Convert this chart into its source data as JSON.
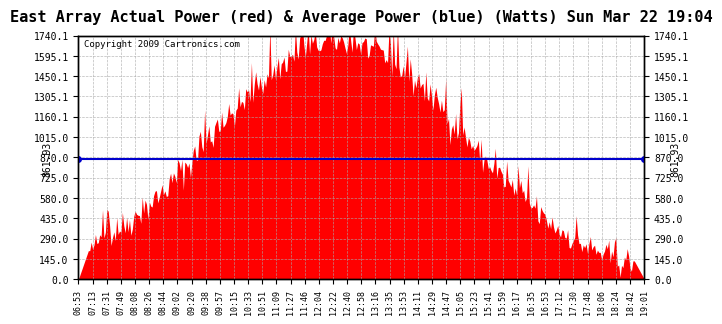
{
  "title": "East Array Actual Power (red) & Average Power (blue) (Watts) Sun Mar 22 19:04",
  "copyright": "Copyright 2009 Cartronics.com",
  "average_power": 861.93,
  "y_max": 1740.1,
  "y_min": 0.0,
  "yticks": [
    0.0,
    145.0,
    290.0,
    435.0,
    580.0,
    725.0,
    870.0,
    1015.0,
    1160.1,
    1305.1,
    1450.1,
    1595.1,
    1740.1
  ],
  "bg_color": "#ffffff",
  "plot_bg_color": "#ffffff",
  "grid_color": "#aaaaaa",
  "fill_color": "#ff0000",
  "avg_line_color": "#0000cc",
  "title_fontsize": 11,
  "x_labels": [
    "06:53",
    "07:13",
    "07:31",
    "07:49",
    "08:08",
    "08:26",
    "08:44",
    "09:02",
    "09:20",
    "09:38",
    "09:57",
    "10:15",
    "10:33",
    "10:51",
    "11:09",
    "11:27",
    "11:46",
    "12:04",
    "12:22",
    "12:40",
    "12:58",
    "13:16",
    "13:35",
    "13:53",
    "14:11",
    "14:29",
    "14:47",
    "15:05",
    "15:23",
    "15:41",
    "15:59",
    "16:17",
    "16:35",
    "16:53",
    "17:12",
    "17:30",
    "17:48",
    "18:06",
    "18:24",
    "18:42",
    "19:01"
  ]
}
